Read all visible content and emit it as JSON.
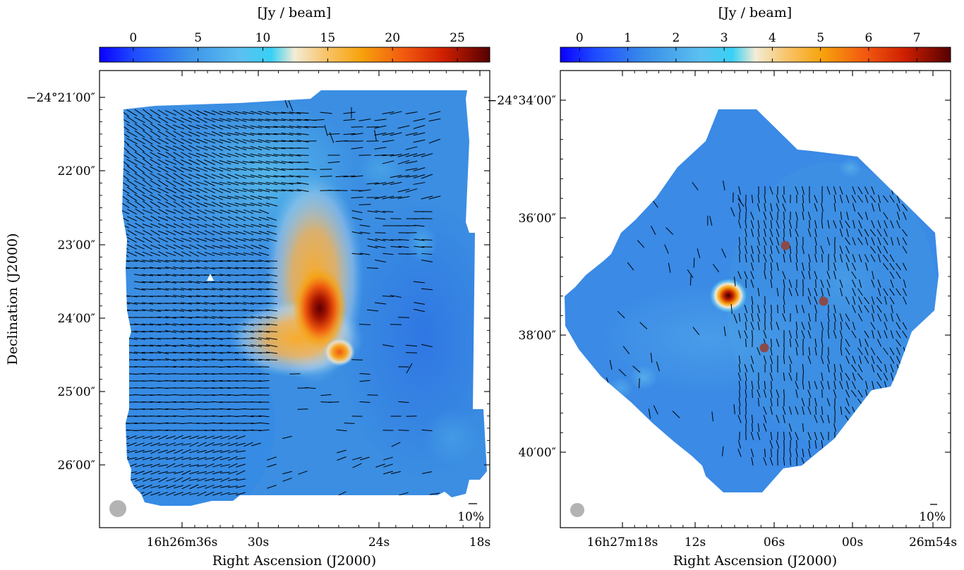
{
  "chart_data": [
    {
      "type": "heatmap",
      "title": "",
      "colorbar": {
        "label": "[Jy / beam]",
        "ticks": [
          0,
          5,
          10,
          15,
          20,
          25
        ],
        "range": [
          -2.6,
          27.5
        ]
      },
      "xlabel": "Right Ascension (J2000)",
      "ylabel": "Declination (J2000)",
      "x_ticks": [
        "16h26m36s",
        "30s",
        "24s",
        "18s"
      ],
      "y_ticks": [
        "−24°21′00″",
        "22′00″",
        "23′00″",
        "24′00″",
        "25′00″",
        "26′00″"
      ],
      "scale_bar_label": "10%",
      "peaks": [
        {
          "name": "main",
          "intensity": 27
        },
        {
          "name": "secondary",
          "intensity": 21
        }
      ],
      "markers": [
        {
          "shape": "triangle",
          "color": "#ffffff"
        }
      ],
      "beam": {
        "color": "#b3b3b3"
      }
    },
    {
      "type": "heatmap",
      "title": "",
      "colorbar": {
        "label": "[Jy / beam]",
        "ticks": [
          0,
          1,
          2,
          3,
          4,
          5,
          6,
          7
        ],
        "range": [
          -0.4,
          7.7
        ]
      },
      "xlabel": "Right Ascension (J2000)",
      "ylabel": "",
      "x_ticks": [
        "16h27m18s",
        "12s",
        "06s",
        "00s",
        "26m54s"
      ],
      "y_ticks": [
        "−24°34′00″",
        "36′00″",
        "38′00″",
        "40′00″"
      ],
      "scale_bar_label": "10%",
      "peaks": [
        {
          "name": "compact source",
          "intensity": 7.6
        }
      ],
      "markers": [
        {
          "shape": "circle",
          "color": "#8b4a4a"
        },
        {
          "shape": "circle",
          "color": "#8b4a4a"
        },
        {
          "shape": "circle",
          "color": "#8b4a4a"
        }
      ],
      "beam": {
        "color": "#b3b3b3"
      }
    }
  ]
}
